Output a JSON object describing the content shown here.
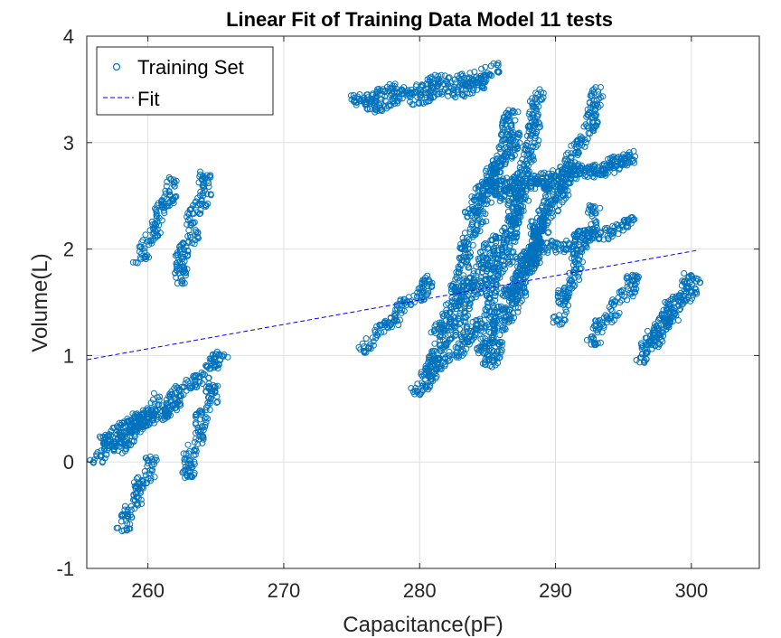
{
  "chart_data": {
    "type": "scatter",
    "title": "Linear Fit of Training Data Model 11 tests",
    "xlabel": "Capacitance(pF)",
    "ylabel": "Volume(L)",
    "xlim": [
      255.5,
      305
    ],
    "ylim": [
      -1,
      4
    ],
    "xticks": [
      260,
      270,
      280,
      290,
      300
    ],
    "yticks": [
      -1,
      0,
      1,
      2,
      3,
      4
    ],
    "grid": true,
    "legend_position": "top-left",
    "series": [
      {
        "name": "Training Set",
        "marker": "circle",
        "color": "#0072BD",
        "clusters": [
          {
            "x0": 255.8,
            "y0": 0.0,
            "x1": 261.0,
            "y1": 0.6
          },
          {
            "x0": 256.5,
            "y0": 0.2,
            "x1": 262.5,
            "y1": 0.55
          },
          {
            "x0": 257.5,
            "y0": 0.1,
            "x1": 265.8,
            "y1": 1.02
          },
          {
            "x0": 258.0,
            "y0": -0.65,
            "x1": 260.5,
            "y1": 0.05
          },
          {
            "x0": 262.7,
            "y0": -0.15,
            "x1": 265.0,
            "y1": 0.75
          },
          {
            "x0": 259.3,
            "y0": 1.85,
            "x1": 262.0,
            "y1": 2.65
          },
          {
            "x0": 262.0,
            "y0": 1.65,
            "x1": 264.5,
            "y1": 2.72
          },
          {
            "x0": 275.0,
            "y0": 3.4,
            "x1": 286.0,
            "y1": 3.68
          },
          {
            "x0": 276.0,
            "y0": 3.35,
            "x1": 285.0,
            "y1": 3.55
          },
          {
            "x0": 275.5,
            "y0": 1.05,
            "x1": 281.0,
            "y1": 1.7
          },
          {
            "x0": 279.5,
            "y0": 0.65,
            "x1": 287.0,
            "y1": 1.6
          },
          {
            "x0": 280.0,
            "y0": 0.75,
            "x1": 286.0,
            "y1": 2.0
          },
          {
            "x0": 281.0,
            "y0": 1.2,
            "x1": 288.0,
            "y1": 2.5
          },
          {
            "x0": 282.5,
            "y0": 1.6,
            "x1": 287.0,
            "y1": 3.3
          },
          {
            "x0": 283.5,
            "y0": 2.3,
            "x1": 287.5,
            "y1": 3.1
          },
          {
            "x0": 284.5,
            "y0": 1.0,
            "x1": 289.0,
            "y1": 3.5
          },
          {
            "x0": 285.0,
            "y0": 0.9,
            "x1": 289.0,
            "y1": 2.2
          },
          {
            "x0": 285.5,
            "y0": 2.5,
            "x1": 296.0,
            "y1": 2.85
          },
          {
            "x0": 285.0,
            "y0": 2.6,
            "x1": 295.0,
            "y1": 2.8
          },
          {
            "x0": 287.0,
            "y0": 1.5,
            "x1": 290.0,
            "y1": 2.7
          },
          {
            "x0": 288.0,
            "y0": 1.8,
            "x1": 293.5,
            "y1": 3.52
          },
          {
            "x0": 286.5,
            "y0": 1.9,
            "x1": 296.0,
            "y1": 2.25
          },
          {
            "x0": 290.0,
            "y0": 1.3,
            "x1": 293.0,
            "y1": 2.4
          },
          {
            "x0": 292.5,
            "y0": 1.1,
            "x1": 296.0,
            "y1": 1.75
          },
          {
            "x0": 296.0,
            "y0": 0.95,
            "x1": 300.0,
            "y1": 1.75
          },
          {
            "x0": 297.0,
            "y0": 1.1,
            "x1": 300.5,
            "y1": 1.72
          }
        ]
      },
      {
        "name": "Fit",
        "line_style": "dashed",
        "color": "#0000FF",
        "x": [
          255.5,
          300.5
        ],
        "y": [
          0.96,
          1.99
        ]
      }
    ]
  }
}
